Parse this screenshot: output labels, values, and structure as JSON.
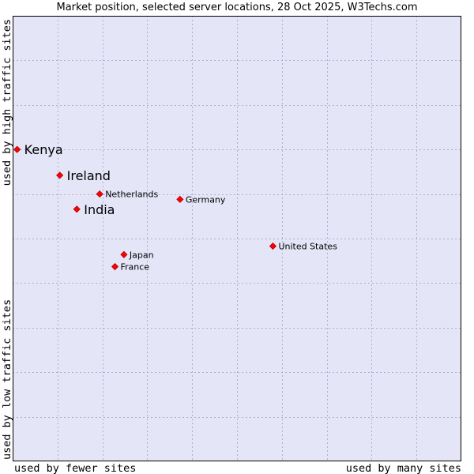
{
  "chart_data": {
    "type": "scatter",
    "title": "Market position, selected server locations, 28 Oct 2025, W3Techs.com",
    "xlabel_left": "used by fewer sites",
    "xlabel_right": "used by many sites",
    "ylabel_bottom": "used by low traffic sites",
    "ylabel_top": "used by high traffic sites",
    "xlim": [
      0,
      100
    ],
    "ylim": [
      0,
      100
    ],
    "grid": true,
    "colors": {
      "plot_background": "#e5e5f8",
      "grid": "#b0b0c8",
      "marker": "#ff0000",
      "marker_edge": "#b00000",
      "border": "#000000"
    },
    "points": [
      {
        "label": "Kenya",
        "x": 1.0,
        "y": 70.0,
        "emphasis": true
      },
      {
        "label": "Ireland",
        "x": 10.5,
        "y": 64.2,
        "emphasis": true
      },
      {
        "label": "India",
        "x": 14.3,
        "y": 56.6,
        "emphasis": true
      },
      {
        "label": "Netherlands",
        "x": 19.4,
        "y": 60.0,
        "emphasis": false
      },
      {
        "label": "Germany",
        "x": 37.3,
        "y": 58.8,
        "emphasis": false
      },
      {
        "label": "United States",
        "x": 58.0,
        "y": 48.3,
        "emphasis": false
      },
      {
        "label": "Japan",
        "x": 24.8,
        "y": 46.4,
        "emphasis": false
      },
      {
        "label": "France",
        "x": 22.8,
        "y": 43.7,
        "emphasis": false
      }
    ]
  }
}
